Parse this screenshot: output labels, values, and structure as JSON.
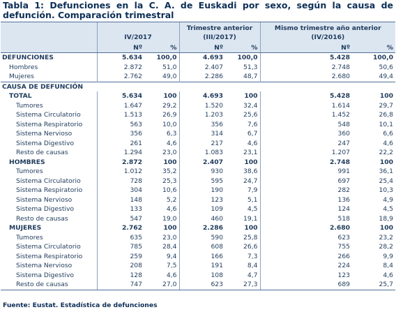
{
  "title": "Tabla 1: Defunciones en la C. A. de Euskadi por sexo, según la causa de defunción. Comparación trimestral",
  "headers": {
    "period1": "IV/2017",
    "period2_line1": "Trimestre anterior",
    "period2_line2": "(III/2017)",
    "period3_line1": "Mismo trimestre año anterior",
    "period3_line2": "(IV/2016)",
    "num": "Nº",
    "pct": "%"
  },
  "rows": [
    {
      "label": "DEFUNCIONES",
      "v": [
        "5.634",
        "100,0",
        "4.693",
        "100,0",
        "5.428",
        "100,0"
      ]
    },
    {
      "label": "Hombres",
      "v": [
        "2.872",
        "51,0",
        "2.407",
        "51,3",
        "2.748",
        "50,6"
      ]
    },
    {
      "label": "Mujeres",
      "v": [
        "2.762",
        "49,0",
        "2.286",
        "48,7",
        "2.680",
        "49,4"
      ]
    },
    {
      "label": "CAUSA DE DEFUNCIÓN"
    },
    {
      "label": "TOTAL",
      "v": [
        "5.634",
        "100",
        "4.693",
        "100",
        "5.428",
        "100"
      ]
    },
    {
      "label": "Tumores",
      "v": [
        "1.647",
        "29,2",
        "1.520",
        "32,4",
        "1.614",
        "29,7"
      ]
    },
    {
      "label": "Sistema Circulatorio",
      "v": [
        "1.513",
        "26,9",
        "1.203",
        "25,6",
        "1.452",
        "26,8"
      ]
    },
    {
      "label": "Sistema Respiratorio",
      "v": [
        "563",
        "10,0",
        "356",
        "7,6",
        "548",
        "10,1"
      ]
    },
    {
      "label": "Sistema Nervioso",
      "v": [
        "356",
        "6,3",
        "314",
        "6,7",
        "360",
        "6,6"
      ]
    },
    {
      "label": "Sistema Digestivo",
      "v": [
        "261",
        "4,6",
        "217",
        "4,6",
        "247",
        "4,6"
      ]
    },
    {
      "label": "Resto de causas",
      "v": [
        "1.294",
        "23,0",
        "1.083",
        "23,1",
        "1.207",
        "22,2"
      ]
    },
    {
      "label": "HOMBRES",
      "v": [
        "2.872",
        "100",
        "2.407",
        "100",
        "2.748",
        "100"
      ]
    },
    {
      "label": "Tumores",
      "v": [
        "1.012",
        "35,2",
        "930",
        "38,6",
        "991",
        "36,1"
      ]
    },
    {
      "label": "Sistema Circulatorio",
      "v": [
        "728",
        "25,3",
        "595",
        "24,7",
        "697",
        "25,4"
      ]
    },
    {
      "label": "Sistema Respiratorio",
      "v": [
        "304",
        "10,6",
        "190",
        "7,9",
        "282",
        "10,3"
      ]
    },
    {
      "label": "Sistema Nervioso",
      "v": [
        "148",
        "5,2",
        "123",
        "5,1",
        "136",
        "4,9"
      ]
    },
    {
      "label": "Sistema Digestivo",
      "v": [
        "133",
        "4,6",
        "109",
        "4,5",
        "124",
        "4,5"
      ]
    },
    {
      "label": "Resto de causas",
      "v": [
        "547",
        "19,0",
        "460",
        "19,1",
        "518",
        "18,9"
      ]
    },
    {
      "label": "MUJERES",
      "v": [
        "2.762",
        "100",
        "2.286",
        "100",
        "2.680",
        "100"
      ]
    },
    {
      "label": "Tumores",
      "v": [
        "635",
        "23,0",
        "590",
        "25,8",
        "623",
        "23,2"
      ]
    },
    {
      "label": "Sistema Circulatorio",
      "v": [
        "785",
        "28,4",
        "608",
        "26,6",
        "755",
        "28,2"
      ]
    },
    {
      "label": "Sistema Respiratorio",
      "v": [
        "259",
        "9,4",
        "166",
        "7,3",
        "266",
        "9,9"
      ]
    },
    {
      "label": "Sistema Nervioso",
      "v": [
        "208",
        "7,5",
        "191",
        "8,4",
        "224",
        "8,4"
      ]
    },
    {
      "label": "Sistema Digestivo",
      "v": [
        "128",
        "4,6",
        "108",
        "4,7",
        "123",
        "4,6"
      ]
    },
    {
      "label": "Resto de causas",
      "v": [
        "747",
        "27,0",
        "623",
        "27,3",
        "689",
        "25,7"
      ]
    }
  ],
  "footer": "Fuente: Eustat. Estadística de defunciones"
}
